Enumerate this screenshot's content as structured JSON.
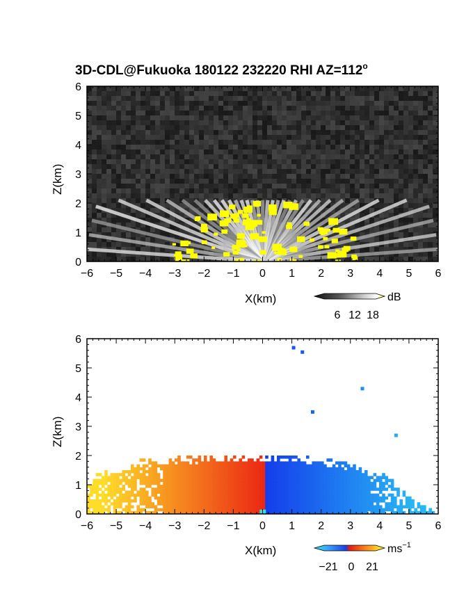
{
  "title": "3D-CDL@Fukuoka 180122 232220 RHI AZ=112",
  "title_sup": "o",
  "chart_data": [
    {
      "type": "heatmap",
      "name": "reflectivity-rhi",
      "xlabel": "X(km)",
      "ylabel": "Z(km)",
      "xlim": [
        -6,
        6
      ],
      "ylim": [
        0,
        6
      ],
      "xticks": [
        "−6",
        "−5",
        "−4",
        "−3",
        "−2",
        "−1",
        "0",
        "1",
        "2",
        "3",
        "4",
        "5",
        "6"
      ],
      "yticks": [
        "0",
        "1",
        "2",
        "3",
        "4",
        "5",
        "6"
      ],
      "colorbar": {
        "unit": "dB",
        "ticks": [
          "6",
          "12",
          "18"
        ],
        "range": [
          0,
          24
        ]
      },
      "colors": {
        "background": "#2a2a2a",
        "high": "#ffff00"
      },
      "echo_top_km": 2.1
    },
    {
      "type": "heatmap",
      "name": "doppler-velocity-rhi",
      "xlabel": "X(km)",
      "ylabel": "Z(km)",
      "xlim": [
        -6,
        6
      ],
      "ylim": [
        0,
        6
      ],
      "xticks": [
        "−6",
        "−5",
        "−4",
        "−3",
        "−2",
        "−1",
        "0",
        "1",
        "2",
        "3",
        "4",
        "5",
        "6"
      ],
      "yticks": [
        "0",
        "1",
        "2",
        "3",
        "4",
        "5",
        "6"
      ],
      "colorbar": {
        "unit": "ms",
        "unit_sup": "−1",
        "ticks": [
          "−21",
          "0",
          "21"
        ],
        "range": [
          -21,
          21
        ]
      },
      "colors": {
        "negative": "#1e5cf0",
        "zero": "#e83a1a",
        "positive": "#ffd820"
      },
      "echo_top_km": 2.2
    }
  ]
}
